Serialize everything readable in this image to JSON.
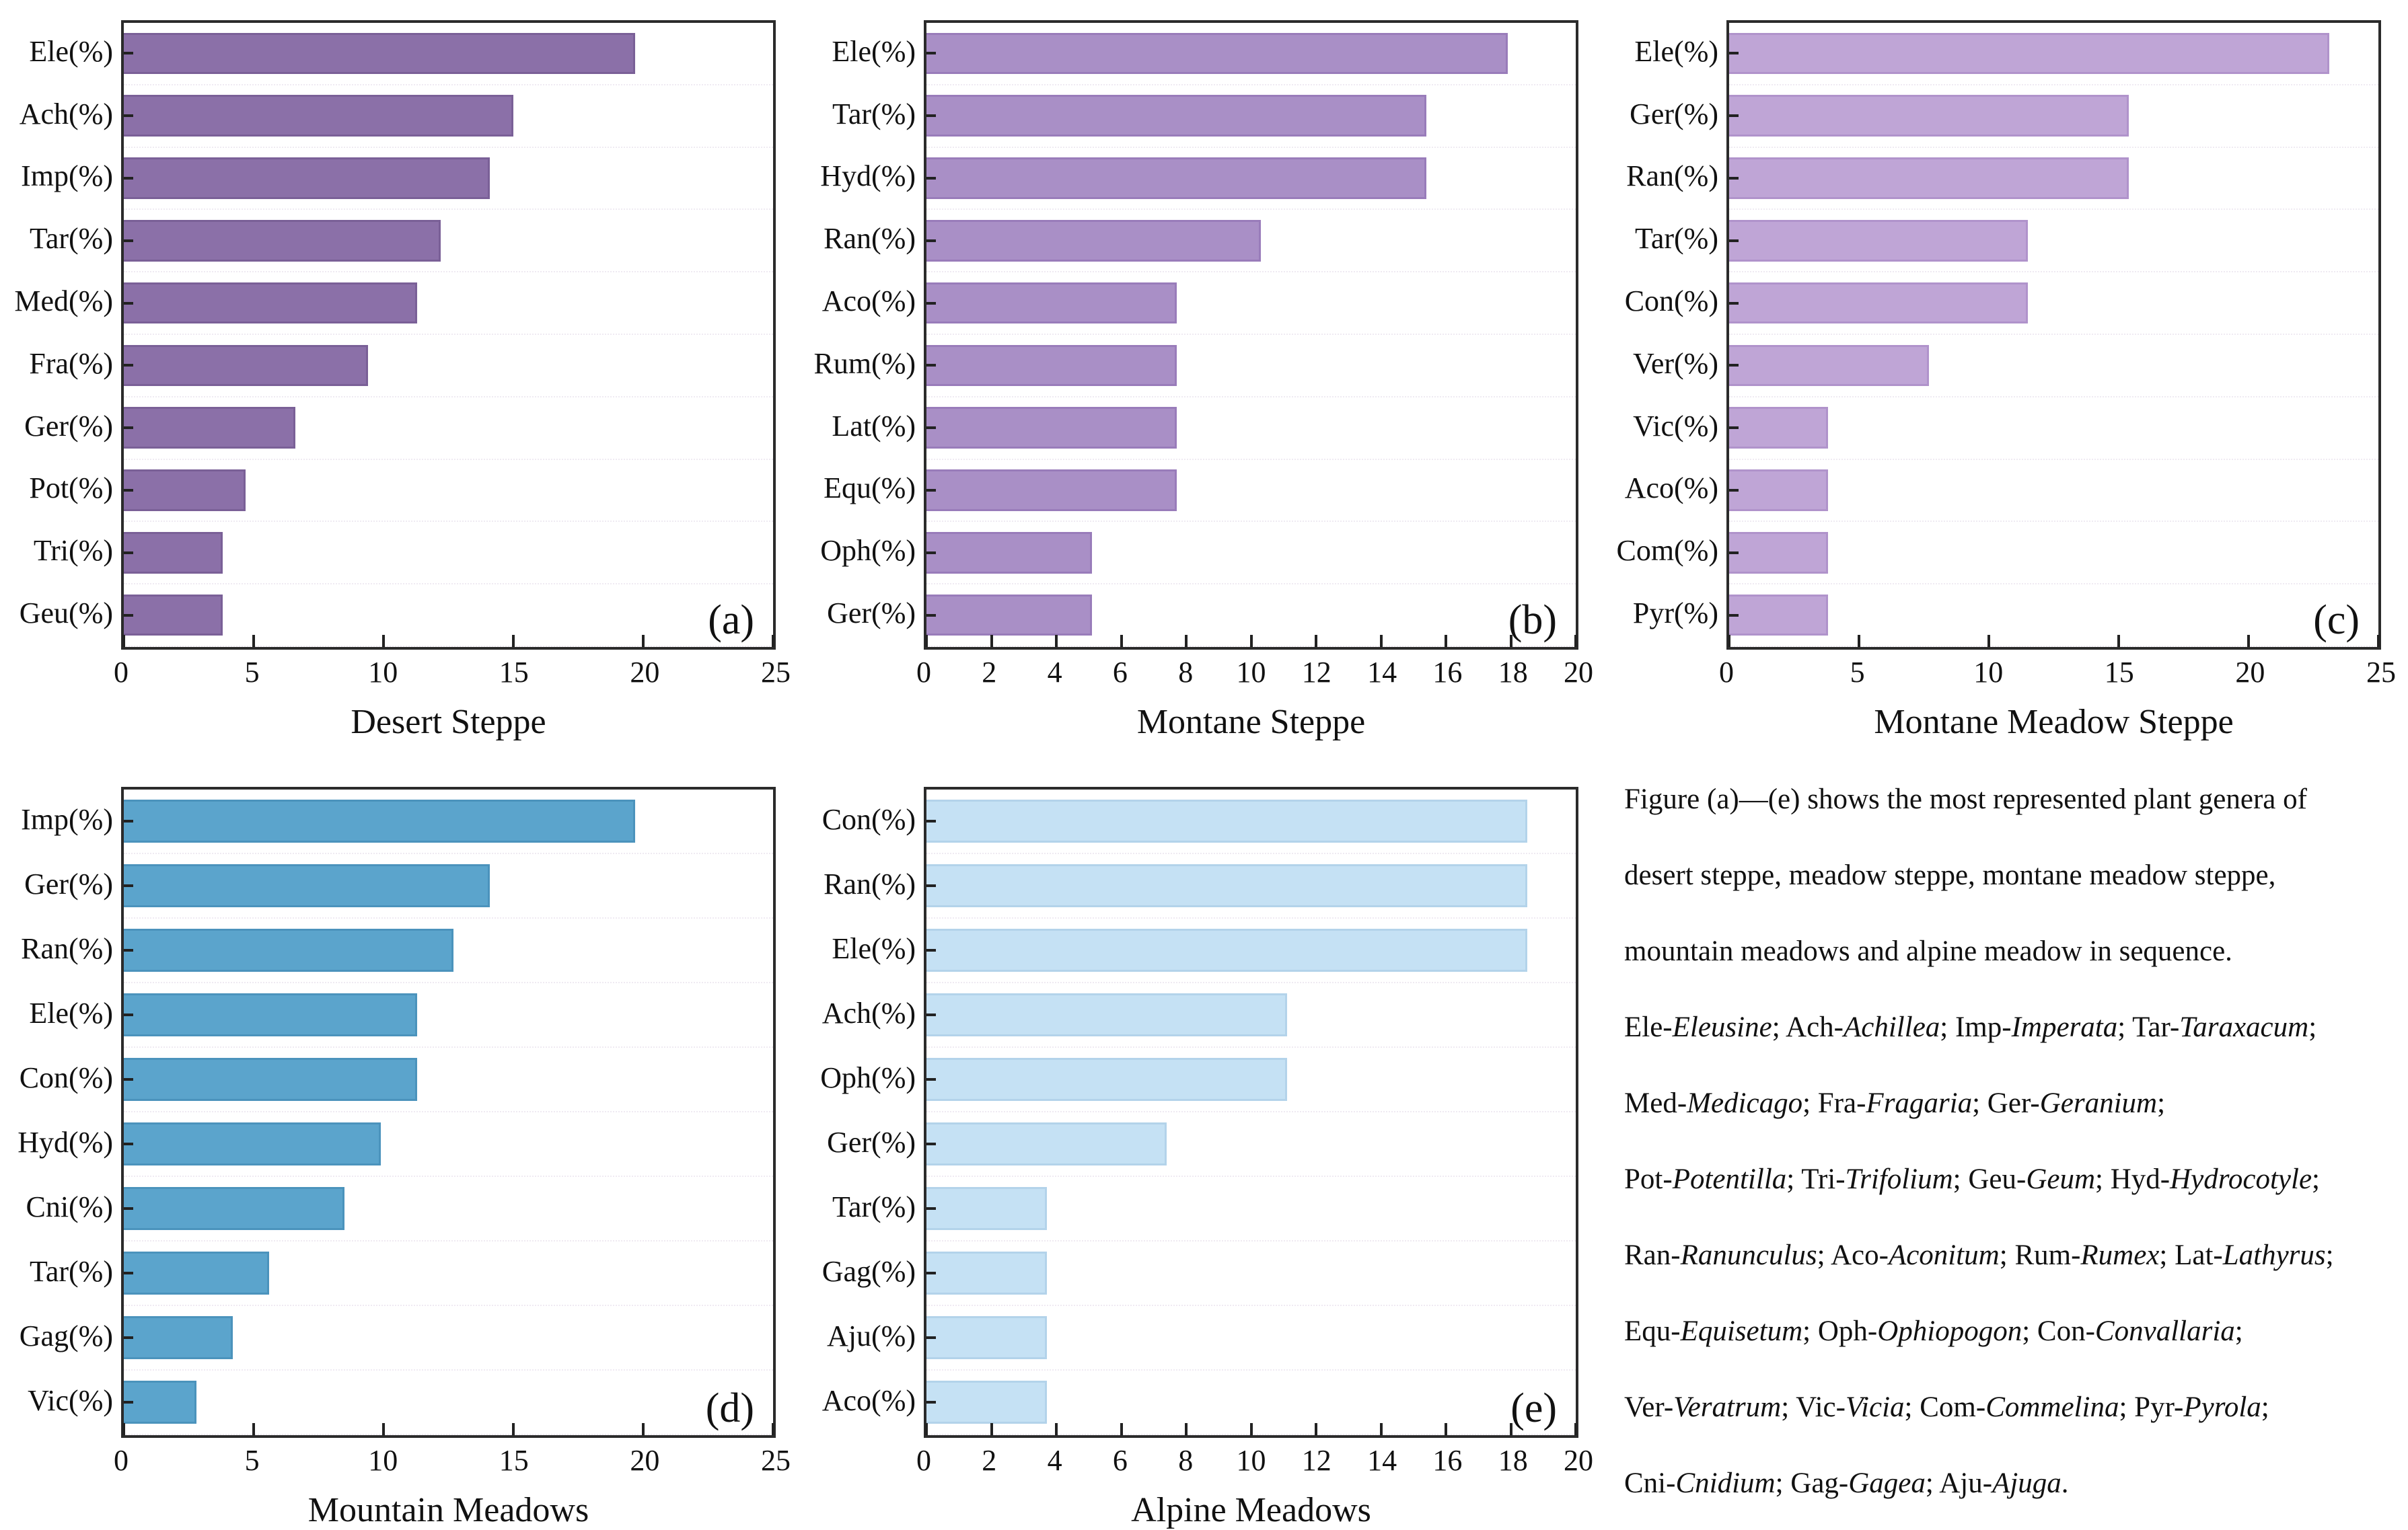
{
  "figure": {
    "background": "#ffffff",
    "frame_color": "#2b2b2b",
    "text_color": "#111111",
    "gridline_color": "#efeaf2"
  },
  "chart_data": [
    {
      "type": "bar",
      "orientation": "horizontal",
      "panel_label": "(a)",
      "title": "Desert Steppe",
      "categories": [
        "Ele(%)",
        "Ach(%)",
        "Imp(%)",
        "Tar(%)",
        "Med(%)",
        "Fra(%)",
        "Ger(%)",
        "Pot(%)",
        "Tri(%)",
        "Geu(%)"
      ],
      "values": [
        19.7,
        15.0,
        14.1,
        12.2,
        11.3,
        9.4,
        6.6,
        4.7,
        3.8,
        3.8
      ],
      "xlim": [
        0,
        25
      ],
      "xticks": [
        0,
        5,
        10,
        15,
        20,
        25
      ],
      "bar_color": "#8b70a8",
      "bar_border_color": "#7a6097"
    },
    {
      "type": "bar",
      "orientation": "horizontal",
      "panel_label": "(b)",
      "title": "Montane Steppe",
      "categories": [
        "Ele(%)",
        "Tar(%)",
        "Hyd(%)",
        "Ran(%)",
        "Aco(%)",
        "Rum(%)",
        "Lat(%)",
        "Equ(%)",
        "Oph(%)",
        "Ger(%)"
      ],
      "values": [
        17.9,
        15.4,
        15.4,
        10.3,
        7.7,
        7.7,
        7.7,
        7.7,
        5.1,
        5.1
      ],
      "xlim": [
        0,
        20
      ],
      "xticks": [
        0,
        2,
        4,
        6,
        8,
        10,
        12,
        14,
        16,
        18,
        20
      ],
      "bar_color": "#a98fc6",
      "bar_border_color": "#997cba"
    },
    {
      "type": "bar",
      "orientation": "horizontal",
      "panel_label": "(c)",
      "title": "Montane Meadow Steppe",
      "categories": [
        "Ele(%)",
        "Ger(%)",
        "Ran(%)",
        "Tar(%)",
        "Con(%)",
        "Ver(%)",
        "Vic(%)",
        "Aco(%)",
        "Com(%)",
        "Pyr(%)"
      ],
      "values": [
        23.1,
        15.4,
        15.4,
        11.5,
        11.5,
        7.7,
        3.8,
        3.8,
        3.8,
        3.8
      ],
      "xlim": [
        0,
        25
      ],
      "xticks": [
        0,
        5,
        10,
        15,
        20,
        25
      ],
      "bar_color": "#bfa5d6",
      "bar_border_color": "#b093cb"
    },
    {
      "type": "bar",
      "orientation": "horizontal",
      "panel_label": "(d)",
      "title": "Mountain Meadows",
      "categories": [
        "Imp(%)",
        "Ger(%)",
        "Ran(%)",
        "Ele(%)",
        "Con(%)",
        "Hyd(%)",
        "Cni(%)",
        "Tar(%)",
        "Gag(%)",
        "Vic(%)"
      ],
      "values": [
        19.7,
        14.1,
        12.7,
        11.3,
        11.3,
        9.9,
        8.5,
        5.6,
        4.2,
        2.8
      ],
      "xlim": [
        0,
        25
      ],
      "xticks": [
        0,
        5,
        10,
        15,
        20,
        25
      ],
      "bar_color": "#5ba4cc",
      "bar_border_color": "#4b93bc"
    },
    {
      "type": "bar",
      "orientation": "horizontal",
      "panel_label": "(e)",
      "title": "Alpine Meadows",
      "categories": [
        "Con(%)",
        "Ran(%)",
        "Ele(%)",
        "Ach(%)",
        "Oph(%)",
        "Ger(%)",
        "Tar(%)",
        "Gag(%)",
        "Aju(%)",
        "Aco(%)"
      ],
      "values": [
        18.5,
        18.5,
        18.5,
        11.1,
        11.1,
        7.4,
        3.7,
        3.7,
        3.7,
        3.7
      ],
      "xlim": [
        0,
        20
      ],
      "xticks": [
        0,
        2,
        4,
        6,
        8,
        10,
        12,
        14,
        16,
        18,
        20
      ],
      "bar_color": "#c5e1f4",
      "bar_border_color": "#b3d3ea"
    }
  ],
  "caption": {
    "lines": [
      [
        {
          "t": "Figure (a)—(e) shows the most represented plant genera of"
        }
      ],
      [
        {
          "t": "desert steppe, meadow steppe, montane meadow steppe,"
        }
      ],
      [
        {
          "t": "mountain meadows and alpine meadow in sequence."
        }
      ],
      [
        {
          "t": "Ele-"
        },
        {
          "t": "Eleusine",
          "i": true
        },
        {
          "t": "; Ach-"
        },
        {
          "t": "Achillea",
          "i": true
        },
        {
          "t": "; Imp-"
        },
        {
          "t": "Imperata",
          "i": true
        },
        {
          "t": "; Tar-"
        },
        {
          "t": "Taraxacum",
          "i": true
        },
        {
          "t": ";"
        }
      ],
      [
        {
          "t": "Med-"
        },
        {
          "t": "Medicago",
          "i": true
        },
        {
          "t": "; Fra-"
        },
        {
          "t": "Fragaria",
          "i": true
        },
        {
          "t": "; Ger-"
        },
        {
          "t": "Geranium",
          "i": true
        },
        {
          "t": ";"
        }
      ],
      [
        {
          "t": "Pot-"
        },
        {
          "t": "Potentilla",
          "i": true
        },
        {
          "t": "; Tri-"
        },
        {
          "t": "Trifolium",
          "i": true
        },
        {
          "t": "; Geu-"
        },
        {
          "t": "Geum",
          "i": true
        },
        {
          "t": "; Hyd-"
        },
        {
          "t": "Hydrocotyle",
          "i": true
        },
        {
          "t": ";"
        }
      ],
      [
        {
          "t": "Ran-"
        },
        {
          "t": "Ranunculus",
          "i": true
        },
        {
          "t": "; Aco-"
        },
        {
          "t": "Aconitum",
          "i": true
        },
        {
          "t": "; Rum-"
        },
        {
          "t": "Rumex",
          "i": true
        },
        {
          "t": "; Lat-"
        },
        {
          "t": "Lathyrus",
          "i": true
        },
        {
          "t": ";"
        }
      ],
      [
        {
          "t": "Equ-"
        },
        {
          "t": "Equisetum",
          "i": true
        },
        {
          "t": "; Oph-"
        },
        {
          "t": "Ophiopogon",
          "i": true
        },
        {
          "t": "; Con-"
        },
        {
          "t": "Convallaria",
          "i": true
        },
        {
          "t": ";"
        }
      ],
      [
        {
          "t": "Ver-"
        },
        {
          "t": "Veratrum",
          "i": true
        },
        {
          "t": "; Vic-"
        },
        {
          "t": "Vicia",
          "i": true
        },
        {
          "t": "; Com-"
        },
        {
          "t": "Commelina",
          "i": true
        },
        {
          "t": "; Pyr-"
        },
        {
          "t": "Pyrola",
          "i": true
        },
        {
          "t": ";"
        }
      ],
      [
        {
          "t": "Cni-"
        },
        {
          "t": "Cnidium",
          "i": true
        },
        {
          "t": "; Gag-"
        },
        {
          "t": "Gagea",
          "i": true
        },
        {
          "t": "; Aju-"
        },
        {
          "t": "Ajuga",
          "i": true
        },
        {
          "t": "."
        }
      ]
    ]
  }
}
